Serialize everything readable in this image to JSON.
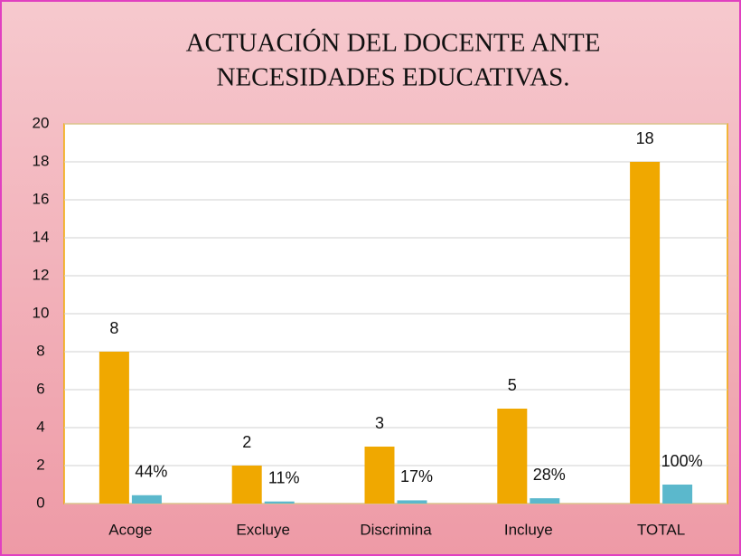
{
  "chart_data": {
    "type": "bar",
    "title": [
      "ACTUACIÓN DEL DOCENTE ANTE",
      "NECESIDADES EDUCATIVAS."
    ],
    "categories": [
      "Acoge",
      "Excluye",
      "Discrimina",
      "Incluye",
      "TOTAL"
    ],
    "series": [
      {
        "color": "#f0a800",
        "values": [
          8,
          2,
          3,
          5,
          18
        ]
      },
      {
        "color": "#5bb8cc",
        "values": [
          0.44,
          0.11,
          0.17,
          0.28,
          1
        ],
        "value_labels": [
          "44%",
          "11%",
          "17%",
          "28%",
          "100%"
        ]
      }
    ],
    "ylim": [
      0,
      20
    ],
    "yticks": [
      0,
      2,
      4,
      6,
      8,
      10,
      12,
      14,
      16,
      18,
      20
    ],
    "grid": true
  }
}
